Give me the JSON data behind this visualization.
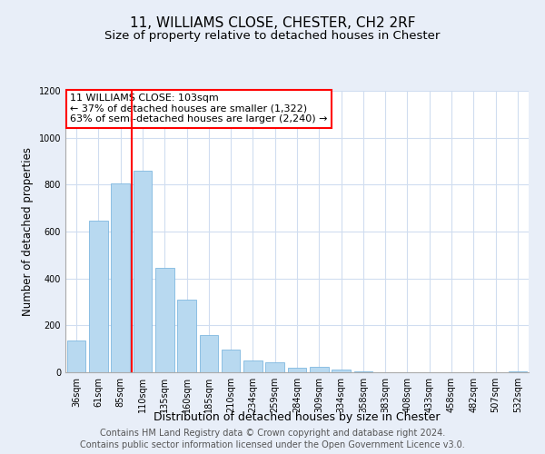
{
  "title": "11, WILLIAMS CLOSE, CHESTER, CH2 2RF",
  "subtitle": "Size of property relative to detached houses in Chester",
  "xlabel": "Distribution of detached houses by size in Chester",
  "ylabel": "Number of detached properties",
  "categories": [
    "36sqm",
    "61sqm",
    "85sqm",
    "110sqm",
    "135sqm",
    "160sqm",
    "185sqm",
    "210sqm",
    "234sqm",
    "259sqm",
    "284sqm",
    "309sqm",
    "334sqm",
    "358sqm",
    "383sqm",
    "408sqm",
    "433sqm",
    "458sqm",
    "482sqm",
    "507sqm",
    "532sqm"
  ],
  "values": [
    135,
    645,
    805,
    860,
    445,
    310,
    158,
    95,
    52,
    43,
    18,
    22,
    10,
    5,
    0,
    0,
    0,
    0,
    0,
    0,
    5
  ],
  "bar_color": "#b8d9f0",
  "bar_edge_color": "#7fb8e0",
  "vline_color": "red",
  "annotation_title": "11 WILLIAMS CLOSE: 103sqm",
  "annotation_line1": "← 37% of detached houses are smaller (1,322)",
  "annotation_line2": "63% of semi-detached houses are larger (2,240) →",
  "annotation_box_color": "white",
  "annotation_box_edge_color": "red",
  "ylim": [
    0,
    1200
  ],
  "yticks": [
    0,
    200,
    400,
    600,
    800,
    1000,
    1200
  ],
  "footer1": "Contains HM Land Registry data © Crown copyright and database right 2024.",
  "footer2": "Contains public sector information licensed under the Open Government Licence v3.0.",
  "title_fontsize": 11,
  "subtitle_fontsize": 9.5,
  "xlabel_fontsize": 9,
  "ylabel_fontsize": 8.5,
  "tick_fontsize": 7,
  "annotation_fontsize": 8,
  "footer_fontsize": 7,
  "plot_bg_color": "#ffffff",
  "fig_bg_color": "#e8eef8"
}
